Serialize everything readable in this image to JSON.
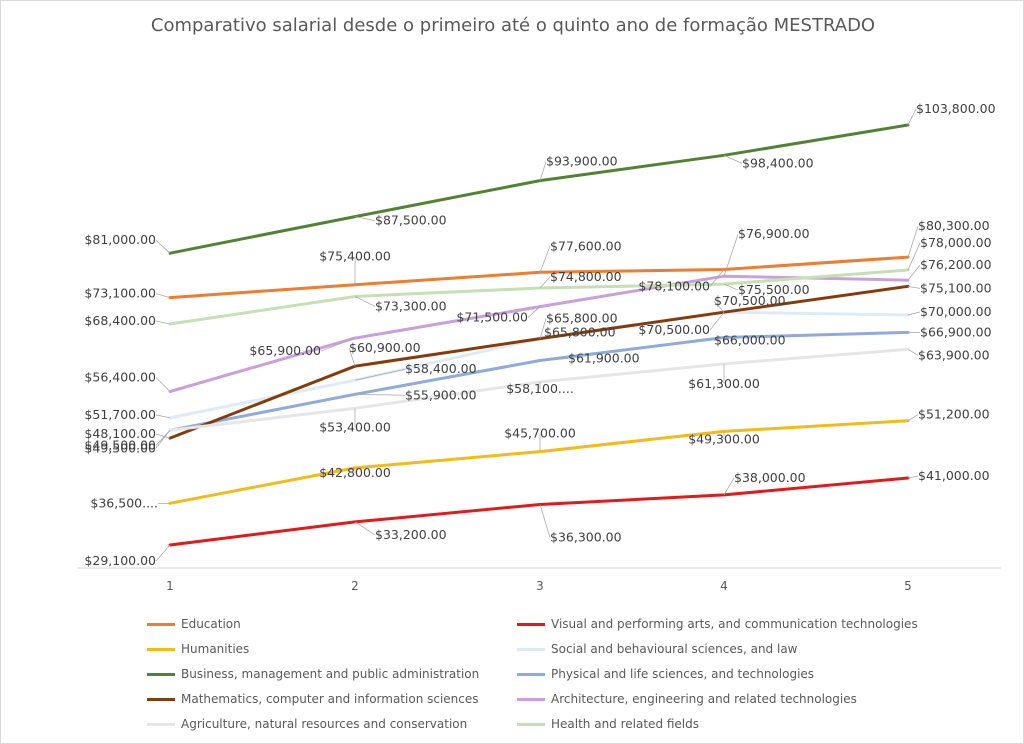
{
  "chart_data": {
    "type": "line",
    "title": "Comparativo salarial desde o primeiro até o quinto ano de formação MESTRADO",
    "xlabel": "",
    "ylabel": "",
    "x": [
      1,
      2,
      3,
      4,
      5
    ],
    "ylim": [
      25000,
      107000
    ],
    "grid": false,
    "legend_position": "bottom",
    "series": [
      {
        "name": "Education",
        "color": "#ED7D31",
        "values": [
          73100,
          75400,
          77600,
          78100,
          80300
        ],
        "labels": [
          "$73,100.00",
          "$75,400.00",
          "$77,600.00",
          "$78,100.00",
          "$80,300.00"
        ]
      },
      {
        "name": "Visual and performing arts, and communication technologies",
        "color": "#E31A1C",
        "values": [
          29100,
          33200,
          36300,
          38000,
          41000
        ],
        "labels": [
          "$29,100.00",
          "$33,200.00",
          "$36,300.00",
          "$38,000.00",
          "$41,000.00"
        ]
      },
      {
        "name": "Humanities",
        "color": "#F4BA17",
        "values": [
          36500,
          42800,
          45700,
          49300,
          51200
        ],
        "labels": [
          "$36,500....",
          "$42,800.00",
          "$45,700.00",
          "$49,300.00",
          "$51,200.00"
        ]
      },
      {
        "name": "Social and behavioural sciences, and law",
        "color": "#DEEBF7",
        "values": [
          51700,
          58400,
          65800,
          70500,
          70000
        ],
        "labels": [
          "$51,700.00",
          "$58,400.00",
          "$65,800.00",
          "$70,500.00",
          "$70,000.00"
        ]
      },
      {
        "name": "Business, management and public administration",
        "color": "#548235",
        "values": [
          81000,
          87500,
          93900,
          98400,
          103800
        ],
        "labels": [
          "$81,000.00",
          "$87,500.00",
          "$93,900.00",
          "$98,400.00",
          "$103,800.00"
        ]
      },
      {
        "name": "Physical and life sciences, and technologies",
        "color": "#8FAADC",
        "values": [
          49500,
          55900,
          61900,
          66000,
          66900
        ],
        "labels": [
          "$49,500.00",
          "$55,900.00",
          "$61,900.00",
          "$66,000.00",
          "$66,900.00"
        ]
      },
      {
        "name": "Mathematics, computer and information sciences",
        "color": "#843C0C",
        "values": [
          48100,
          60900,
          65800,
          70500,
          75100
        ],
        "labels": [
          "$48,100.00",
          "$60,900.00",
          "$65,800.00",
          "$70,500.00",
          "$75,100.00"
        ]
      },
      {
        "name": "Architecture, engineering and related technologies",
        "color": "#C9A0DC",
        "values": [
          56400,
          65900,
          71500,
          76900,
          76200
        ],
        "labels": [
          "$56,400.00",
          "$65,900.00",
          "$71,500.00",
          "$76,900.00",
          "$76,200.00"
        ]
      },
      {
        "name": "Agriculture, natural resources and conservation",
        "color": "#E7E6E6",
        "values": [
          49500,
          53400,
          58100,
          61300,
          63900
        ],
        "labels": [
          "$49,500.00",
          "$53,400.00",
          "$58,100....",
          "$61,300.00",
          "$63,900.00"
        ]
      },
      {
        "name": "Health and related fields",
        "color": "#C5E0B4",
        "values": [
          68400,
          73300,
          74800,
          75500,
          78000
        ],
        "labels": [
          "$68,400.00",
          "$73,300.00",
          "$74,800.00",
          "$75,500.00",
          "$78,000.00"
        ]
      }
    ]
  }
}
